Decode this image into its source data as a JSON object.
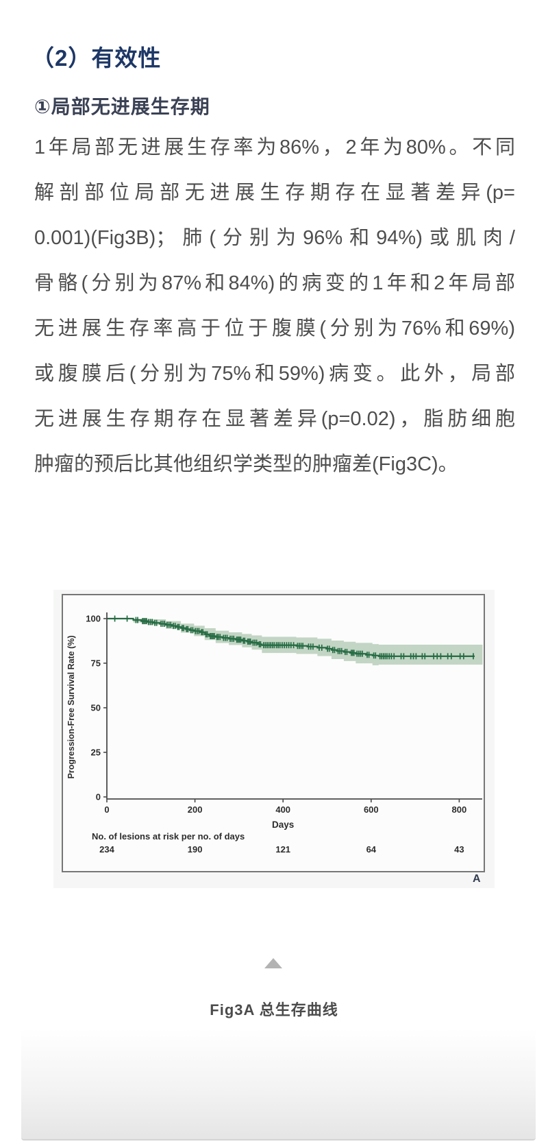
{
  "page": {
    "section_title": "（2）有效性",
    "subsection_title": "①局部无进展生存期",
    "body_lines": [
      "1年局部无进展生存率为86%，2年为80%。不同",
      "解剖部位局部无进展生存期存在显著差异(p=",
      "0.001)(Fig3B)；肺(分别为96%和94%)或肌肉/",
      "骨骼(分别为87%和84%)的病变的1年和2年局部",
      "无进展生存率高于位于腹膜(分别为76%和69%)",
      "或腹膜后(分别为75%和59%)病变。此外，局部",
      "无进展生存期存在显著差异(p=0.02)，脂肪细胞",
      "肿瘤的预后比其他组织学类型的肿瘤差(Fig3C)。"
    ],
    "caption": "Fig3A 总生存曲线"
  },
  "figure": {
    "panel_label": "A"
  },
  "colors": {
    "heading": "#1d3766",
    "body_text": "#4e4e4e",
    "curve": "#256b43",
    "band": "#c3d5c4",
    "axis": "#4a4a4a",
    "chart_text": "#2c2c2c",
    "triangle": "#b3b3b3"
  },
  "chart_data": {
    "type": "line",
    "subtype": "kaplan-meier-step",
    "title": "",
    "xlabel": "Days",
    "ylabel": "Progression-Free Survival Rate (%)",
    "xlim": [
      0,
      855
    ],
    "ylim": [
      0,
      100
    ],
    "x_ticks": [
      0,
      200,
      400,
      600,
      800
    ],
    "y_ticks": [
      0,
      25,
      50,
      75,
      100
    ],
    "grid": false,
    "legend": "none",
    "risk_label": "No. of lesions at risk per no. of days",
    "risk_days": [
      0,
      200,
      400,
      600,
      800
    ],
    "risk_counts": [
      234,
      190,
      121,
      64,
      43
    ],
    "annotations": {
      "survival_1yr_pct": 86,
      "survival_2yr_pct": 80
    },
    "curve_end_day": 835,
    "steps": [
      [
        0,
        100
      ],
      [
        60,
        99.2
      ],
      [
        78,
        98.6
      ],
      [
        92,
        98.1
      ],
      [
        106,
        97.6
      ],
      [
        120,
        97.1
      ],
      [
        134,
        96.5
      ],
      [
        148,
        95.9
      ],
      [
        158,
        95.3
      ],
      [
        168,
        94.7
      ],
      [
        178,
        94.1
      ],
      [
        188,
        93.5
      ],
      [
        198,
        93.0
      ],
      [
        212,
        92.4
      ],
      [
        222,
        91.2
      ],
      [
        232,
        90.2
      ],
      [
        247,
        89.7
      ],
      [
        262,
        89.2
      ],
      [
        277,
        88.7
      ],
      [
        292,
        88.2
      ],
      [
        307,
        87.6
      ],
      [
        318,
        87.1
      ],
      [
        329,
        86.5
      ],
      [
        343,
        85.6
      ],
      [
        352,
        85.1
      ],
      [
        430,
        84.7
      ],
      [
        455,
        84.3
      ],
      [
        478,
        83.7
      ],
      [
        498,
        83.1
      ],
      [
        510,
        82.4
      ],
      [
        522,
        81.8
      ],
      [
        538,
        81.3
      ],
      [
        552,
        80.8
      ],
      [
        565,
        80.3
      ],
      [
        588,
        79.7
      ],
      [
        603,
        79.3
      ],
      [
        617,
        78.9
      ]
    ],
    "censors": [
      [
        18,
        100
      ],
      [
        46,
        100
      ],
      [
        66,
        99.2
      ],
      [
        70,
        99.2
      ],
      [
        81,
        98.6
      ],
      [
        84,
        98.6
      ],
      [
        87,
        98.6
      ],
      [
        90,
        98.6
      ],
      [
        95,
        98.1
      ],
      [
        99,
        98.1
      ],
      [
        103,
        98.1
      ],
      [
        109,
        97.6
      ],
      [
        113,
        97.6
      ],
      [
        123,
        97.1
      ],
      [
        127,
        97.1
      ],
      [
        131,
        97.1
      ],
      [
        137,
        96.5
      ],
      [
        141,
        96.5
      ],
      [
        145,
        96.5
      ],
      [
        151,
        95.9
      ],
      [
        155,
        95.9
      ],
      [
        161,
        95.3
      ],
      [
        164,
        95.3
      ],
      [
        171,
        94.7
      ],
      [
        174,
        94.7
      ],
      [
        181,
        94.1
      ],
      [
        184,
        94.1
      ],
      [
        191,
        93.5
      ],
      [
        195,
        93.5
      ],
      [
        201,
        93
      ],
      [
        205,
        93
      ],
      [
        209,
        93
      ],
      [
        215,
        92.4
      ],
      [
        218,
        92.4
      ],
      [
        225,
        91.2
      ],
      [
        228,
        91.2
      ],
      [
        235,
        90.2
      ],
      [
        238,
        90.2
      ],
      [
        241,
        90.2
      ],
      [
        244,
        90.2
      ],
      [
        250,
        89.7
      ],
      [
        253,
        89.7
      ],
      [
        257,
        89.7
      ],
      [
        265,
        89.2
      ],
      [
        269,
        89.2
      ],
      [
        273,
        89.2
      ],
      [
        280,
        88.7
      ],
      [
        284,
        88.7
      ],
      [
        288,
        88.7
      ],
      [
        295,
        88.2
      ],
      [
        298,
        88.2
      ],
      [
        301,
        88.2
      ],
      [
        304,
        88.2
      ],
      [
        310,
        87.6
      ],
      [
        313,
        87.6
      ],
      [
        320,
        87.1
      ],
      [
        323,
        87.1
      ],
      [
        326,
        87.1
      ],
      [
        332,
        86.5
      ],
      [
        336,
        86.5
      ],
      [
        340,
        86.5
      ],
      [
        346,
        85.6
      ],
      [
        349,
        85.6
      ],
      [
        356,
        85.1
      ],
      [
        360,
        85.1
      ],
      [
        364,
        85.1
      ],
      [
        368,
        85.1
      ],
      [
        372,
        85.1
      ],
      [
        376,
        85.1
      ],
      [
        380,
        85.1
      ],
      [
        385,
        85.1
      ],
      [
        389,
        85.1
      ],
      [
        393,
        85.1
      ],
      [
        398,
        85.1
      ],
      [
        403,
        85.1
      ],
      [
        408,
        85.1
      ],
      [
        413,
        85.1
      ],
      [
        418,
        85.1
      ],
      [
        424,
        85.1
      ],
      [
        433,
        84.7
      ],
      [
        437,
        84.7
      ],
      [
        441,
        84.7
      ],
      [
        445,
        84.7
      ],
      [
        458,
        84.3
      ],
      [
        463,
        84.3
      ],
      [
        468,
        84.3
      ],
      [
        482,
        83.7
      ],
      [
        488,
        83.7
      ],
      [
        501,
        83.1
      ],
      [
        505,
        83.1
      ],
      [
        513,
        82.4
      ],
      [
        517,
        82.4
      ],
      [
        525,
        81.8
      ],
      [
        529,
        81.8
      ],
      [
        533,
        81.8
      ],
      [
        541,
        81.3
      ],
      [
        545,
        81.3
      ],
      [
        555,
        80.8
      ],
      [
        558,
        80.8
      ],
      [
        561,
        80.8
      ],
      [
        568,
        80.3
      ],
      [
        572,
        80.3
      ],
      [
        576,
        80.3
      ],
      [
        580,
        80.3
      ],
      [
        591,
        79.7
      ],
      [
        595,
        79.7
      ],
      [
        606,
        79.3
      ],
      [
        610,
        79.3
      ],
      [
        620,
        78.9
      ],
      [
        624,
        78.9
      ],
      [
        628,
        78.9
      ],
      [
        632,
        78.9
      ],
      [
        636,
        78.9
      ],
      [
        641,
        78.9
      ],
      [
        646,
        78.9
      ],
      [
        652,
        78.9
      ],
      [
        668,
        78.9
      ],
      [
        674,
        78.9
      ],
      [
        690,
        78.9
      ],
      [
        696,
        78.9
      ],
      [
        702,
        78.9
      ],
      [
        716,
        78.9
      ],
      [
        722,
        78.9
      ],
      [
        742,
        78.9
      ],
      [
        750,
        78.9
      ],
      [
        758,
        78.9
      ],
      [
        774,
        78.9
      ],
      [
        782,
        78.9
      ],
      [
        802,
        78.9
      ],
      [
        810,
        78.9
      ],
      [
        832,
        78.9
      ]
    ],
    "band": [
      [
        60,
        100,
        97.8
      ],
      [
        92,
        99.6,
        96.4
      ],
      [
        134,
        98.6,
        94.3
      ],
      [
        168,
        97.2,
        92.1
      ],
      [
        198,
        96.0,
        90.2
      ],
      [
        222,
        94.6,
        88.0
      ],
      [
        247,
        93.2,
        86.3
      ],
      [
        277,
        92.3,
        85.2
      ],
      [
        307,
        91.4,
        83.9
      ],
      [
        329,
        90.6,
        82.6
      ],
      [
        352,
        89.8,
        80.7
      ],
      [
        430,
        89.4,
        80.2
      ],
      [
        478,
        88.7,
        79.0
      ],
      [
        510,
        87.7,
        77.3
      ],
      [
        538,
        87.0,
        76.2
      ],
      [
        565,
        86.4,
        74.9
      ],
      [
        603,
        85.7,
        73.8
      ],
      [
        617,
        85.4,
        74.2
      ],
      [
        853,
        85.4,
        74.2
      ]
    ]
  }
}
